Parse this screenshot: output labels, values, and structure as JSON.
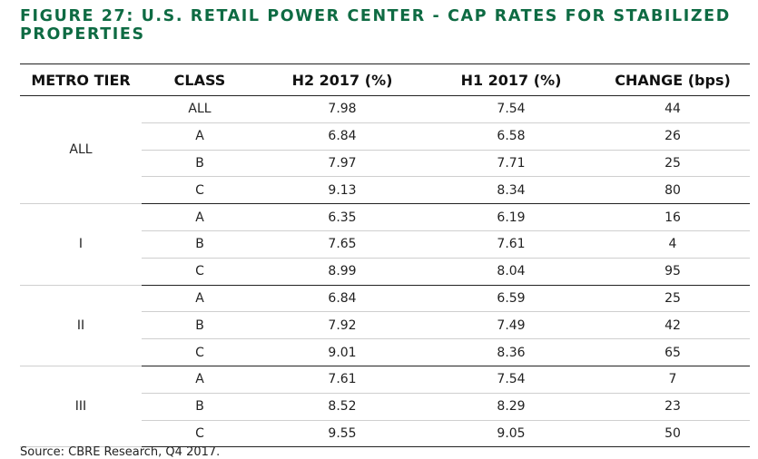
{
  "title": "FIGURE 27: U.S. RETAIL POWER CENTER - CAP RATES FOR STABILIZED PROPERTIES",
  "headers": [
    "METRO TIER",
    "CLASS",
    "H2 2017 (%)",
    "H1 2017 (%)",
    "CHANGE (bps)"
  ],
  "groups": [
    {
      "tier": "ALL",
      "rows": [
        [
          "ALL",
          "7.98",
          "7.54",
          "44"
        ],
        [
          "A",
          "6.84",
          "6.58",
          "26"
        ],
        [
          "B",
          "7.97",
          "7.71",
          "25"
        ],
        [
          "C",
          "9.13",
          "8.34",
          "80"
        ]
      ]
    },
    {
      "tier": "I",
      "rows": [
        [
          "A",
          "6.35",
          "6.19",
          "16"
        ],
        [
          "B",
          "7.65",
          "7.61",
          "4"
        ],
        [
          "C",
          "8.99",
          "8.04",
          "95"
        ]
      ]
    },
    {
      "tier": "II",
      "rows": [
        [
          "A",
          "6.84",
          "6.59",
          "25"
        ],
        [
          "B",
          "7.92",
          "7.49",
          "42"
        ],
        [
          "C",
          "9.01",
          "8.36",
          "65"
        ]
      ]
    },
    {
      "tier": "III",
      "rows": [
        [
          "A",
          "7.61",
          "7.54",
          "7"
        ],
        [
          "B",
          "8.52",
          "8.29",
          "23"
        ],
        [
          "C",
          "9.55",
          "9.05",
          "50"
        ]
      ]
    }
  ],
  "source": "Source: CBRE Research, Q4 2017."
}
